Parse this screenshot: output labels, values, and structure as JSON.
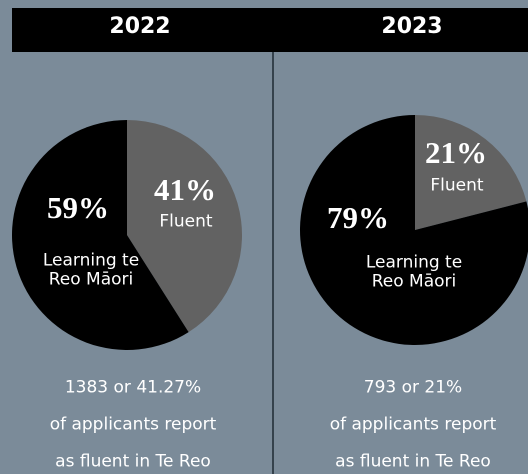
{
  "chart_data": [
    {
      "type": "pie",
      "title": "2022",
      "categories": [
        "Fluent",
        "Learning te Reo Māori"
      ],
      "values": [
        41,
        59
      ],
      "value_labels": [
        "41%",
        "59%"
      ],
      "colors": [
        "#626262",
        "#000000"
      ],
      "annotations": [
        "1383 or 41.27%",
        "of applicants report",
        "as fluent in Te Reo"
      ]
    },
    {
      "type": "pie",
      "title": "2023",
      "categories": [
        "Fluent",
        "Learning te Reo Māori"
      ],
      "values": [
        21,
        79
      ],
      "value_labels": [
        "21%",
        "79%"
      ],
      "colors": [
        "#626262",
        "#000000"
      ],
      "annotations": [
        "793 or 21%",
        "of applicants report",
        "as fluent in Te Reo"
      ]
    }
  ]
}
